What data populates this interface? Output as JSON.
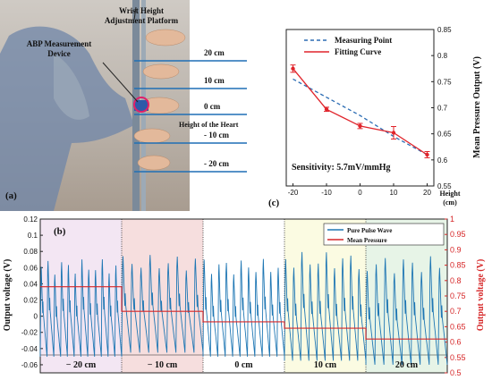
{
  "panel_a": {
    "label": "(a)",
    "platform_label": [
      "Wrist Height",
      "Adjustment Platform"
    ],
    "device_label": [
      "ABP Measurement",
      "Device"
    ],
    "levels": [
      {
        "value": 20,
        "text": "20 cm"
      },
      {
        "value": 10,
        "text": "10 cm"
      },
      {
        "value": 0,
        "text": "0 cm"
      },
      {
        "value": -10,
        "text": "- 10 cm"
      },
      {
        "value": -20,
        "text": "- 20 cm"
      }
    ],
    "heart_label": "Height of the Heart",
    "colors": {
      "line": "#1f6fb5",
      "marker": "#e0206a"
    }
  },
  "chart_data": [
    {
      "panel": "(c)",
      "type": "line",
      "x": [
        -20,
        -10,
        0,
        10,
        20
      ],
      "xticks": [
        "-20",
        "-10",
        "0",
        "10",
        "20"
      ],
      "xlabel": [
        "Height",
        "(cm)"
      ],
      "ylabel": "Mean Pressure Output (V)",
      "ylim": [
        0.55,
        0.85
      ],
      "yticks": [
        "0.55",
        "0.6",
        "0.65",
        "0.7",
        "0.75",
        "0.8",
        "0.85"
      ],
      "series": [
        {
          "name": "Measuring Point",
          "style": "dashed",
          "color": "#2b6cb3",
          "values": [
            0.755,
            0.72,
            0.685,
            0.645,
            0.61
          ]
        },
        {
          "name": "Fitting Curve",
          "style": "solid",
          "color": "#e0242b",
          "values": [
            0.775,
            0.697,
            0.665,
            0.652,
            0.61
          ],
          "errors": [
            0.007,
            0.004,
            0.005,
            0.012,
            0.006
          ]
        }
      ],
      "annotation": "Sensitivity: 5.7mV/mmHg",
      "grid": false,
      "legend": "top-right"
    },
    {
      "panel": "(b)",
      "type": "line",
      "y_left": {
        "label": "Output voltage (V)",
        "ylim": [
          -0.07,
          0.12
        ],
        "ticks": [
          "-0.06",
          "-0.04",
          "-0.02",
          "0",
          "0.02",
          "0.04",
          "0.06",
          "0.08",
          "0.1",
          "0.12"
        ]
      },
      "y_right": {
        "label": "Output voltage (V)",
        "ylim": [
          0.5,
          1.0
        ],
        "color": "#d62728",
        "ticks": [
          "0.5",
          "0.55",
          "0.6",
          "0.65",
          "0.7",
          "0.75",
          "0.8",
          "0.85",
          "0.9",
          "0.95",
          "1"
        ]
      },
      "segments": [
        {
          "label": "− 20 cm",
          "bg": "#f3e6f3",
          "mean_pressure": 0.78,
          "pulse_min": -0.05,
          "pulse_max": 0.08,
          "beats": 12
        },
        {
          "label": "− 10 cm",
          "bg": "#f6dede",
          "mean_pressure": 0.7,
          "pulse_min": -0.045,
          "pulse_max": 0.085,
          "beats": 9
        },
        {
          "label": "0 cm",
          "bg": "#ffffff",
          "mean_pressure": 0.666,
          "pulse_min": -0.05,
          "pulse_max": 0.08,
          "beats": 11
        },
        {
          "label": "10 cm",
          "bg": "#fbfbe2",
          "mean_pressure": 0.645,
          "pulse_min": -0.055,
          "pulse_max": 0.09,
          "beats": 10
        },
        {
          "label": "20 cm",
          "bg": "#e7f4e7",
          "mean_pressure": 0.61,
          "pulse_min": -0.06,
          "pulse_max": 0.085,
          "beats": 9
        }
      ],
      "series": [
        {
          "name": "Pure Pulse Wave",
          "color": "#1f77b4",
          "axis": "left"
        },
        {
          "name": "Mean Pressure",
          "color": "#d62728",
          "axis": "right"
        }
      ],
      "legend": "top-right"
    }
  ]
}
